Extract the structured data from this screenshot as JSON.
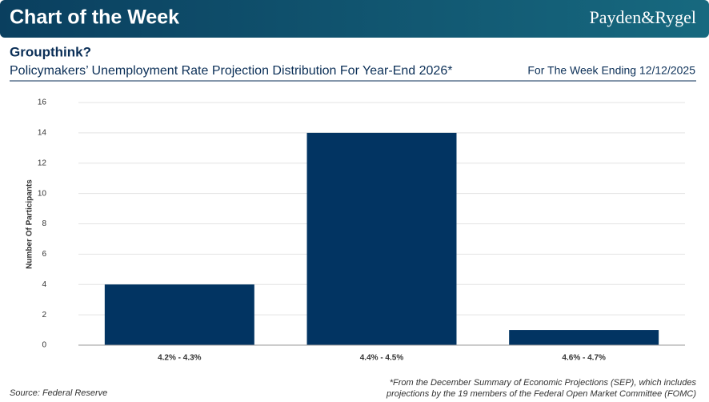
{
  "header": {
    "banner": "Chart of the Week",
    "logo": "Payden&Rygel",
    "date_note": "For The Week Ending 12/12/2025"
  },
  "chart_data": {
    "type": "bar",
    "title": "Groupthink?",
    "subtitle": "Policymakers’ Unemployment Rate Projection Distribution For Year-End 2026*",
    "ylabel": "Number Of Participants",
    "categories": [
      "4.2% - 4.3%",
      "4.4% - 4.5%",
      "4.6% - 4.7%"
    ],
    "values": [
      4,
      14,
      1
    ],
    "color": "#023462",
    "ylim": [
      0,
      16
    ],
    "yticks": [
      0,
      2,
      4,
      6,
      8,
      10,
      12,
      14,
      16
    ],
    "grid": true
  },
  "footer": {
    "source": "Source: Federal Reserve",
    "footnote": [
      "*From the December Summary of Economic Projections (SEP), which includes",
      "projections by the 19 members of the Federal Open Market Committee (FOMC)"
    ]
  }
}
